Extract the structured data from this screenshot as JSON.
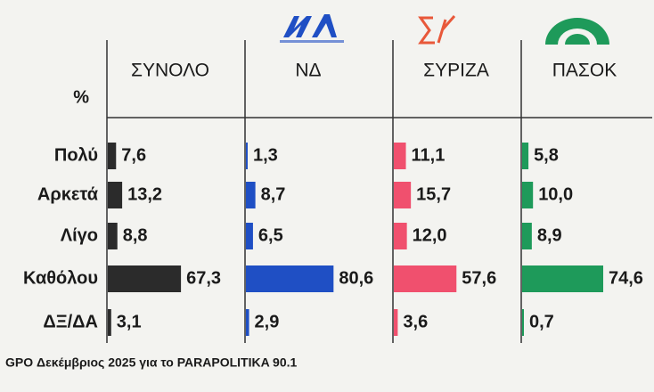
{
  "chart_data": {
    "type": "bar",
    "unit_label": "%",
    "categories": [
      "Πολύ",
      "Αρκετά",
      "Λίγο",
      "Καθόλου",
      "ΔΞ/ΔΑ"
    ],
    "series": [
      {
        "name": "ΣΥΝΟΛΟ",
        "color": "#2b2b2b",
        "values": [
          7.6,
          13.2,
          8.8,
          67.3,
          3.1
        ],
        "value_labels": [
          "7,6",
          "13,2",
          "8,8",
          "67,3",
          "3,1"
        ]
      },
      {
        "name": "ΝΔ",
        "color": "#1f4fc4",
        "values": [
          1.3,
          8.7,
          6.5,
          80.6,
          2.9
        ],
        "value_labels": [
          "1,3",
          "8,7",
          "6,5",
          "80,6",
          "2,9"
        ]
      },
      {
        "name": "ΣΥΡΙΖΑ",
        "color": "#f0506e",
        "values": [
          11.1,
          15.7,
          12.0,
          57.6,
          3.6
        ],
        "value_labels": [
          "11,1",
          "15,7",
          "12,0",
          "57,6",
          "3,6"
        ]
      },
      {
        "name": "ΠΑΣΟΚ",
        "color": "#1e9a5a",
        "values": [
          5.8,
          10.0,
          8.9,
          74.6,
          0.7
        ],
        "value_labels": [
          "5,8",
          "10,0",
          "8,9",
          "74,6",
          "0,7"
        ]
      }
    ],
    "source": "GPO Δεκέμβριος 2025 για το PARAPOLITIKA 90.1"
  }
}
